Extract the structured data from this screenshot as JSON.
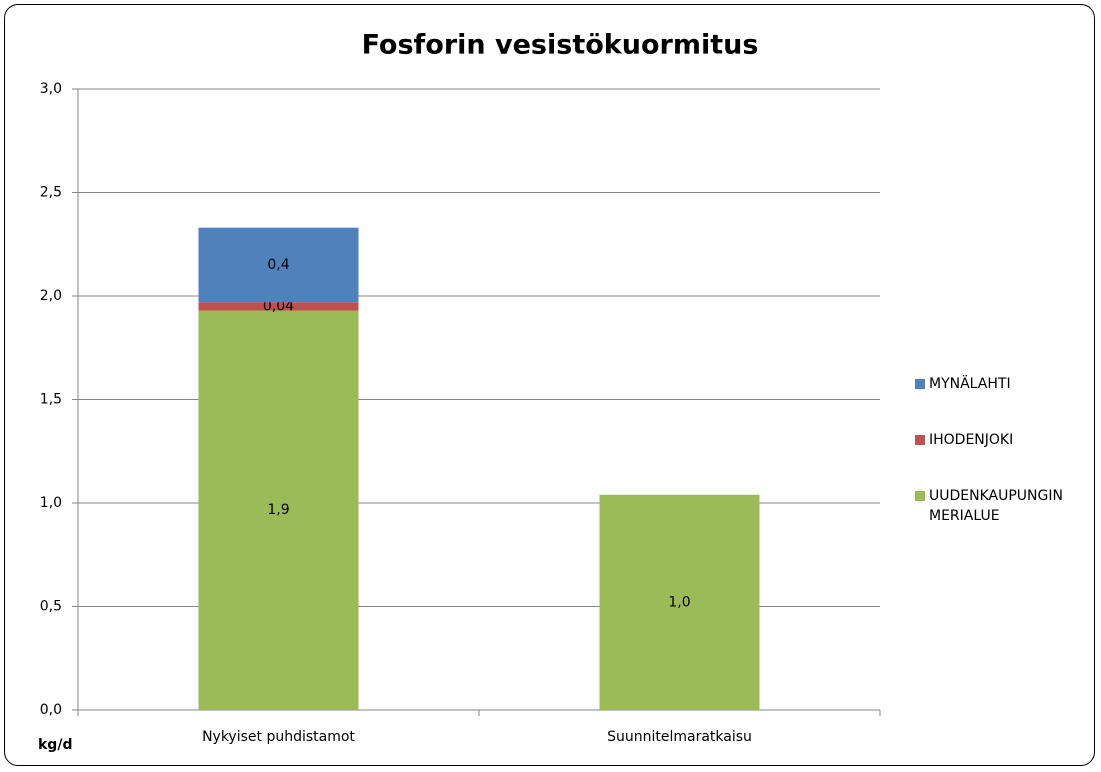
{
  "chart_data": {
    "type": "stacked_bar",
    "title": "Fosforin vesistökuormitus",
    "y_label": "kg/d",
    "categories": [
      "Nykyiset puhdistamot",
      "Suunnitelmaratkaisu"
    ],
    "series": [
      {
        "name": "UUDENKAUPUNGIN MERIALUE",
        "color": "#9bbb59",
        "values": [
          1.93,
          1.04
        ],
        "value_labels": [
          "1,9",
          "1,0"
        ]
      },
      {
        "name": "IHODENJOKI",
        "color": "#c0504d",
        "values": [
          0.04,
          null
        ],
        "value_labels": [
          "0,04",
          null
        ]
      },
      {
        "name": "MYNÄLAHTI",
        "color": "#4f81bd",
        "values": [
          0.36,
          null
        ],
        "value_labels": [
          "0,4",
          null
        ]
      }
    ],
    "ylim": [
      0,
      3
    ],
    "yticks": [
      {
        "value": 0,
        "label": "0,0"
      },
      {
        "value": 0.5,
        "label": "0,5"
      },
      {
        "value": 1,
        "label": "1,0"
      },
      {
        "value": 1.5,
        "label": "1,5"
      },
      {
        "value": 2,
        "label": "2,0"
      },
      {
        "value": 2.5,
        "label": "2,5"
      },
      {
        "value": 3,
        "label": "3,0"
      }
    ],
    "grid": true,
    "legend": "right"
  }
}
